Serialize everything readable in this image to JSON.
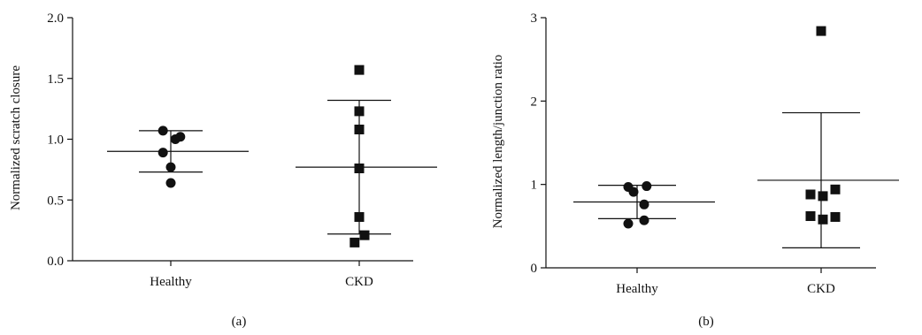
{
  "chart_data": [
    {
      "type": "scatter",
      "panel_label": "(a)",
      "ylabel": "Normalized scratch closure",
      "xlabel": "",
      "categories": [
        "Healthy",
        "CKD"
      ],
      "ylim": [
        0,
        2.0
      ],
      "yticks": [
        0.0,
        0.5,
        1.0,
        1.5,
        2.0
      ],
      "ytick_labels": [
        "0.0",
        "0.5",
        "1.0",
        "1.5",
        "2.0"
      ],
      "grid": false,
      "groups": [
        {
          "category": "Healthy",
          "marker": "circle",
          "points": [
            {
              "offset": -0.22,
              "y": 1.07
            },
            {
              "offset": 0.13,
              "y": 1.0
            },
            {
              "offset": 0.27,
              "y": 1.02
            },
            {
              "offset": -0.22,
              "y": 0.89
            },
            {
              "offset": 0.0,
              "y": 0.77
            },
            {
              "offset": 0.0,
              "y": 0.64
            }
          ],
          "mean": 0.9,
          "sd_upper": 1.07,
          "sd_lower": 0.73
        },
        {
          "category": "CKD",
          "marker": "square",
          "points": [
            {
              "offset": 0.0,
              "y": 1.57
            },
            {
              "offset": 0.0,
              "y": 1.23
            },
            {
              "offset": 0.0,
              "y": 1.08
            },
            {
              "offset": 0.0,
              "y": 0.76
            },
            {
              "offset": 0.0,
              "y": 0.36
            },
            {
              "offset": 0.15,
              "y": 0.21
            },
            {
              "offset": -0.13,
              "y": 0.15
            }
          ],
          "mean": 0.77,
          "sd_upper": 1.32,
          "sd_lower": 0.22
        }
      ]
    },
    {
      "type": "scatter",
      "panel_label": "(b)",
      "ylabel": "Normalized length/junction ratio",
      "xlabel": "",
      "categories": [
        "Healthy",
        "CKD"
      ],
      "ylim": [
        0,
        3
      ],
      "yticks": [
        0,
        1,
        2,
        3
      ],
      "ytick_labels": [
        "0",
        "1",
        "2",
        "3"
      ],
      "grid": false,
      "groups": [
        {
          "category": "Healthy",
          "marker": "circle",
          "points": [
            {
              "offset": -0.25,
              "y": 0.97
            },
            {
              "offset": 0.27,
              "y": 0.98
            },
            {
              "offset": -0.1,
              "y": 0.91
            },
            {
              "offset": 0.2,
              "y": 0.76
            },
            {
              "offset": -0.25,
              "y": 0.53
            },
            {
              "offset": 0.2,
              "y": 0.57
            }
          ],
          "mean": 0.79,
          "sd_upper": 0.99,
          "sd_lower": 0.59
        },
        {
          "category": "CKD",
          "marker": "square",
          "points": [
            {
              "offset": 0.0,
              "y": 2.84
            },
            {
              "offset": -0.3,
              "y": 0.88
            },
            {
              "offset": 0.05,
              "y": 0.86
            },
            {
              "offset": 0.4,
              "y": 0.94
            },
            {
              "offset": -0.3,
              "y": 0.62
            },
            {
              "offset": 0.05,
              "y": 0.58
            },
            {
              "offset": 0.4,
              "y": 0.61
            }
          ],
          "mean": 1.05,
          "sd_upper": 1.86,
          "sd_lower": 0.24
        }
      ]
    }
  ]
}
